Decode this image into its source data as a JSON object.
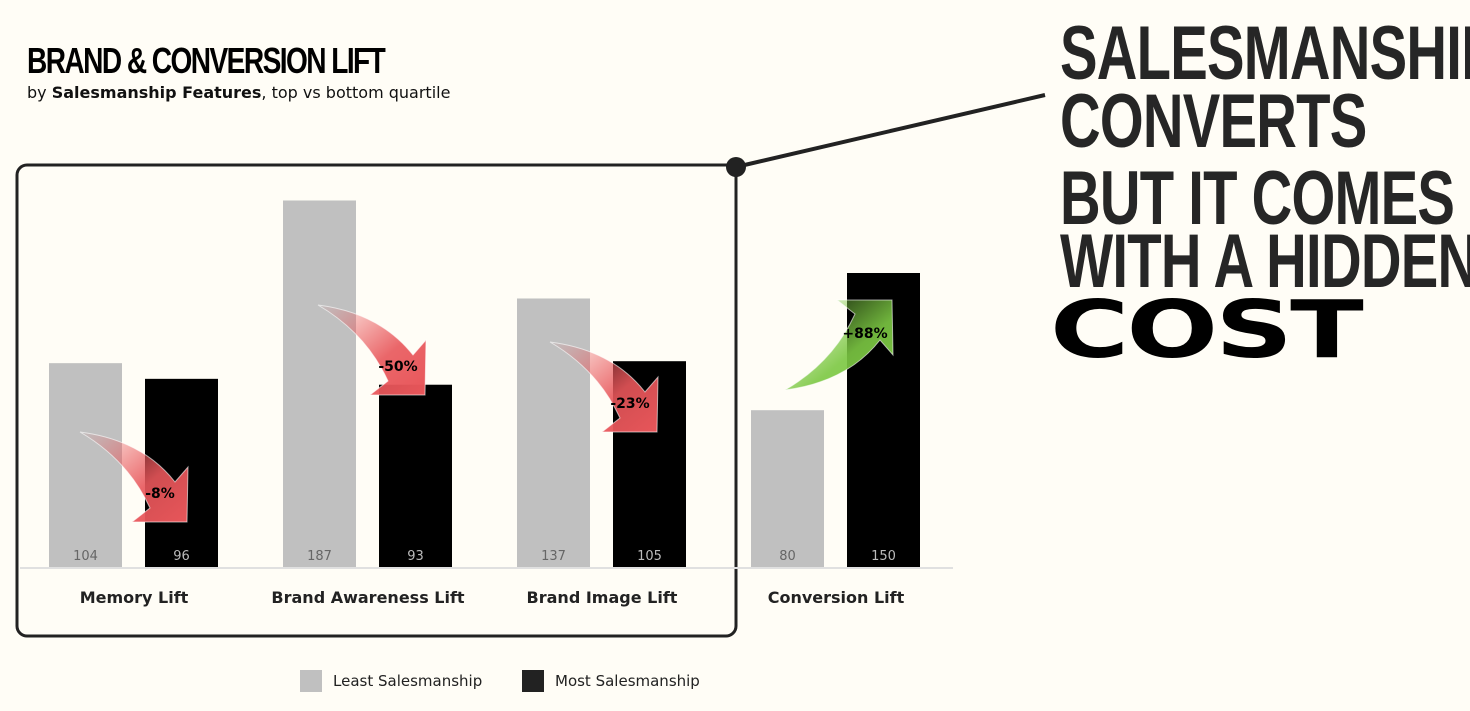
{
  "title": "BRAND & CONVERSION LIFT",
  "subtitle": {
    "prefix": "by ",
    "bold": "Salesmanship Features",
    "suffix": ", top vs bottom quartile"
  },
  "headline": {
    "line1": "SALESMANSHIP",
    "line2": "CONVERTS",
    "line3": "BUT IT COMES",
    "line4": "WITH A HIDDEN",
    "line5": "COST"
  },
  "colors": {
    "least": "#c0c0c0",
    "most": "#000000",
    "negative": "#e8565a",
    "positive": "#7cc843"
  },
  "chart_data": {
    "type": "bar",
    "categories": [
      "Memory Lift",
      "Brand Awareness Lift",
      "Brand Image Lift",
      "Conversion Lift"
    ],
    "series": [
      {
        "name": "Least Salesmanship",
        "values": [
          104,
          187,
          137,
          80
        ]
      },
      {
        "name": "Most Salesmanship",
        "values": [
          96,
          93,
          105,
          150
        ]
      }
    ],
    "changes": [
      "-8%",
      "-50%",
      "-23%",
      "+88%"
    ],
    "ylim": [
      0,
      200
    ],
    "grid": false,
    "legend": "bottom",
    "highlighted_categories": [
      "Memory Lift",
      "Brand Awareness Lift",
      "Brand Image Lift"
    ]
  }
}
